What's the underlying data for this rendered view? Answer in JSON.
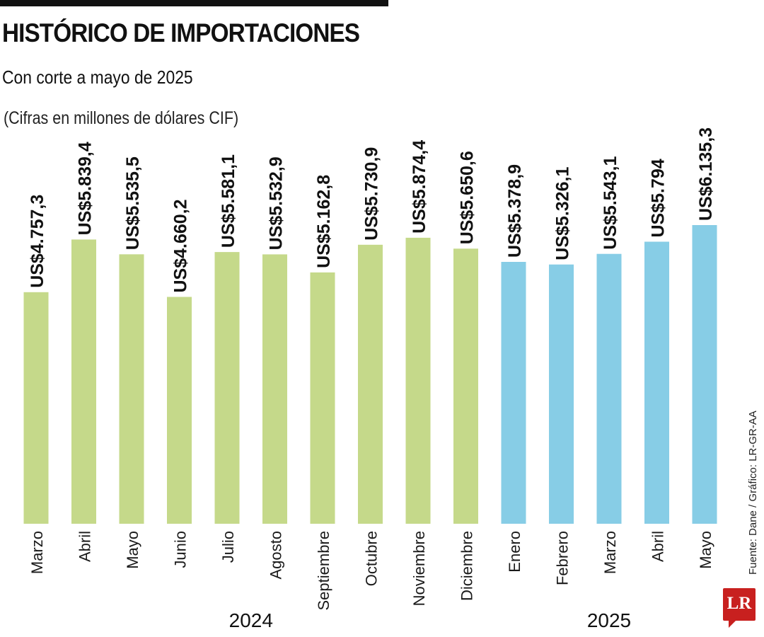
{
  "header": {
    "title": "HISTÓRICO DE IMPORTACIONES",
    "subtitle": "Con corte a mayo de 2025",
    "unit_note": "(Cifras en millones de dólares CIF)"
  },
  "footer": {
    "source": "Fuente: Dane / Gráfico: LR-GR-AA",
    "logo_text": "LR"
  },
  "colors": {
    "series_2024": "#c5d98a",
    "series_2025": "#87cde6",
    "label_text": "#111111"
  },
  "chart_data": {
    "type": "bar",
    "title": "HISTÓRICO DE IMPORTACIONES",
    "subtitle": "Con corte a mayo de 2025",
    "ylabel": "",
    "xlabel": "",
    "ylim": [
      0,
      6135.3
    ],
    "grid": false,
    "categories": [
      "Marzo",
      "Abril",
      "Mayo",
      "Junio",
      "Julio",
      "Agosto",
      "Septiembre",
      "Octubre",
      "Noviembre",
      "Diciembre",
      "Enero",
      "Febrero",
      "Marzo",
      "Abril",
      "Mayo"
    ],
    "values": [
      4757.3,
      5839.4,
      5535.5,
      4660.2,
      5581.1,
      5532.9,
      5162.8,
      5730.9,
      5874.4,
      5650.6,
      5378.9,
      5326.1,
      5543.1,
      5794,
      6135.3
    ],
    "value_labels": [
      "US$4.757,3",
      "US$5.839,4",
      "US$5.535,5",
      "US$4.660,2",
      "US$5.581,1",
      "US$5.532,9",
      "US$5.162,8",
      "US$5.730,9",
      "US$5.874,4",
      "US$5.650,6",
      "US$5.378,9",
      "US$5.326,1",
      "US$5.543,1",
      "US$5.794",
      "US$6.135,3"
    ],
    "groups": [
      {
        "label": "2024",
        "start": 0,
        "end": 9
      },
      {
        "label": "2025",
        "start": 10,
        "end": 14
      }
    ]
  }
}
